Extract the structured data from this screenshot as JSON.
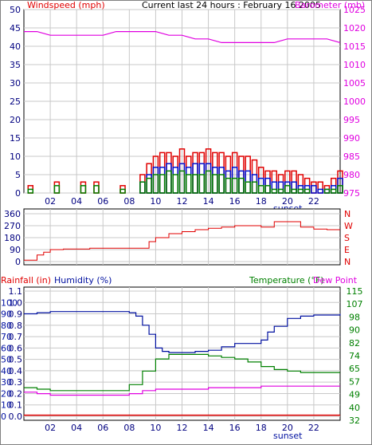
{
  "colors": {
    "wind": "#e00000",
    "gust_blue": "#0010d0",
    "gust_green": "#008000",
    "barometer": "#e000e0",
    "direction": "#e00000",
    "humidity": "#0010a0",
    "temperature": "#008000",
    "dewpoint": "#e000e0",
    "rainfall": "#e00000",
    "grid": "#c8c8c8",
    "sunset": "#0010a0",
    "axis_text": "#000080"
  },
  "header": {
    "windspeed_label": "Windspeed (mph)",
    "title": "Current last 24 hours : February 16 2005",
    "barometer_label": "Barometer (mb)",
    "rainfall_label": "Rainfall (in)",
    "humidity_label": "Humidity (%)",
    "temperature_label": "Temperature (°F)",
    "dewpoint_label": "Dew Point",
    "sunset_top": "sunset",
    "sunset_bottom": "sunset"
  },
  "chart_data": [
    {
      "type": "bar",
      "x_ticks": [
        "02",
        "04",
        "06",
        "08",
        "10",
        "12",
        "14",
        "16",
        "18",
        "20",
        "22"
      ],
      "x_range": [
        0,
        24
      ],
      "y_left": {
        "label": "Windspeed (mph)",
        "ticks": [
          0,
          5,
          10,
          15,
          20,
          25,
          30,
          35,
          40,
          45,
          50
        ],
        "range": [
          0,
          50
        ]
      },
      "y_right": {
        "label": "Barometer (mb)",
        "ticks": [
          975,
          980,
          985,
          990,
          995,
          1000,
          1005,
          1010,
          1015,
          1020,
          1025
        ],
        "range": [
          975,
          1025
        ]
      },
      "barometer_series": {
        "name": "Barometer (mb)",
        "x": [
          0,
          1,
          2,
          3,
          4,
          5,
          6,
          7,
          8,
          9,
          10,
          11,
          12,
          13,
          14,
          15,
          16,
          17,
          18,
          19,
          20,
          21,
          22,
          23,
          24
        ],
        "y": [
          1019,
          1019,
          1018,
          1018,
          1018,
          1018,
          1018,
          1019,
          1019,
          1019,
          1019,
          1018,
          1018,
          1017,
          1017,
          1016,
          1016,
          1016,
          1016,
          1016,
          1017,
          1017,
          1017,
          1017,
          1016
        ]
      },
      "wind_max": {
        "x": [
          0.5,
          2.5,
          4.5,
          5.5,
          7.5,
          9,
          9.5,
          10,
          10.5,
          11,
          11.5,
          12,
          12.5,
          13,
          13.5,
          14,
          14.5,
          15,
          15.5,
          16,
          16.5,
          17,
          17.5,
          18,
          18.5,
          19,
          19.5,
          20,
          20.5,
          21,
          21.5,
          22,
          22.5,
          23,
          23.5,
          24
        ],
        "y": [
          2,
          3,
          3,
          3,
          2,
          5,
          8,
          10,
          11,
          11,
          10,
          12,
          10,
          11,
          11,
          12,
          11,
          11,
          10,
          11,
          10,
          10,
          9,
          7,
          6,
          6,
          5,
          6,
          6,
          5,
          4,
          3,
          3,
          2,
          4,
          6
        ]
      },
      "wind_blue": {
        "x": [
          9,
          9.5,
          10,
          10.5,
          11,
          11.5,
          12,
          12.5,
          13,
          13.5,
          14,
          14.5,
          15,
          15.5,
          16,
          16.5,
          17,
          17.5,
          18,
          18.5,
          19,
          19.5,
          20,
          20.5,
          21,
          21.5,
          22,
          22.5,
          23,
          23.5,
          24
        ],
        "y": [
          3,
          5,
          7,
          7,
          8,
          7,
          8,
          7,
          8,
          8,
          8,
          7,
          7,
          6,
          7,
          6,
          6,
          5,
          4,
          4,
          3,
          3,
          3,
          3,
          2,
          2,
          2,
          1,
          1,
          2,
          4
        ]
      },
      "wind_green": {
        "x": [
          0.5,
          2.5,
          4.5,
          5.5,
          7.5,
          9,
          9.5,
          10,
          10.5,
          11,
          11.5,
          12,
          12.5,
          13,
          13.5,
          14,
          14.5,
          15,
          15.5,
          16,
          16.5,
          17,
          17.5,
          18,
          18.5,
          19,
          19.5,
          20,
          20.5,
          21,
          21.5,
          22,
          22.5,
          23,
          23.5,
          24
        ],
        "y": [
          1,
          2,
          2,
          2,
          1,
          3,
          4,
          5,
          5,
          6,
          5,
          6,
          5,
          5,
          5,
          6,
          5,
          5,
          4,
          4,
          4,
          3,
          3,
          2,
          2,
          1,
          1,
          2,
          1,
          1,
          1,
          0,
          0,
          1,
          1,
          2
        ]
      }
    },
    {
      "type": "line",
      "x_range": [
        0,
        24
      ],
      "y_left": {
        "ticks": [
          0,
          90,
          180,
          270,
          360
        ],
        "range": [
          0,
          360
        ]
      },
      "y_right": {
        "ticks": [
          "N",
          "W",
          "S",
          "E",
          "N"
        ]
      },
      "series": [
        {
          "x": [
            0,
            1,
            1.5,
            2,
            3,
            4,
            5,
            6,
            7,
            8,
            9,
            9.5,
            10,
            11,
            12,
            13,
            14,
            15,
            16,
            17,
            18,
            19,
            20,
            21,
            22,
            23,
            24
          ],
          "y": [
            10,
            50,
            70,
            90,
            95,
            95,
            100,
            100,
            100,
            100,
            100,
            150,
            180,
            210,
            225,
            240,
            250,
            260,
            270,
            270,
            260,
            300,
            300,
            260,
            245,
            240,
            240
          ]
        }
      ]
    },
    {
      "type": "line",
      "x_ticks": [
        "02",
        "04",
        "06",
        "08",
        "10",
        "12",
        "14",
        "16",
        "18",
        "20",
        "22"
      ],
      "x_range": [
        0,
        24
      ],
      "y_left_rain": {
        "label": "Rainfall (in)",
        "ticks": [
          0.0,
          0.1,
          0.2,
          0.3,
          0.4,
          0.5,
          0.6,
          0.7,
          0.8,
          0.9,
          1.0,
          1.1
        ],
        "range": [
          0,
          1.1
        ]
      },
      "y_left_humidity": {
        "label": "Humidity (%)",
        "ticks": [
          0,
          10,
          20,
          30,
          40,
          50,
          60,
          70,
          80,
          90,
          100
        ],
        "range": [
          0,
          110
        ]
      },
      "y_right": {
        "label": "Temperature (°F)",
        "ticks": [
          32,
          40,
          49,
          57,
          65,
          74,
          82,
          90,
          98,
          107,
          115
        ],
        "range": [
          32,
          115
        ]
      },
      "series": [
        {
          "name": "Humidity (%)",
          "x": [
            0,
            1,
            2,
            3,
            4,
            5,
            6,
            7,
            8,
            8.5,
            9,
            9.5,
            10,
            10.5,
            11,
            12,
            13,
            14,
            15,
            16,
            17,
            18,
            18.5,
            19,
            20,
            21,
            22,
            23,
            24
          ],
          "y": [
            90,
            91,
            92,
            92,
            92,
            92,
            92,
            92,
            91,
            88,
            80,
            72,
            60,
            57,
            56,
            56,
            57,
            58,
            61,
            64,
            64,
            67,
            74,
            79,
            86,
            88,
            89,
            89,
            90
          ]
        },
        {
          "name": "Temperature (°F)",
          "x": [
            0,
            1,
            2,
            3,
            4,
            5,
            6,
            7,
            8,
            9,
            10,
            11,
            12,
            13,
            14,
            15,
            16,
            17,
            18,
            19,
            20,
            21,
            22,
            23,
            24
          ],
          "y": [
            51,
            50,
            49,
            49,
            49,
            49,
            49,
            49,
            53,
            62,
            70,
            73,
            73,
            73,
            72,
            71,
            70,
            68,
            65,
            63,
            62,
            61,
            61,
            61,
            61
          ]
        },
        {
          "name": "Dew Point",
          "x": [
            0,
            1,
            2,
            3,
            4,
            5,
            6,
            7,
            8,
            9,
            10,
            11,
            12,
            13,
            14,
            15,
            16,
            17,
            18,
            19,
            20,
            21,
            22,
            23,
            24
          ],
          "y": [
            48,
            47,
            46,
            46,
            46,
            46,
            46,
            46,
            47,
            49,
            50,
            50,
            50,
            50,
            51,
            51,
            51,
            51,
            52,
            52,
            52,
            52,
            52,
            52,
            52
          ]
        },
        {
          "name": "Rainfall (in)",
          "x": [
            0,
            24
          ],
          "y": [
            0.01,
            0.01
          ]
        }
      ]
    }
  ]
}
